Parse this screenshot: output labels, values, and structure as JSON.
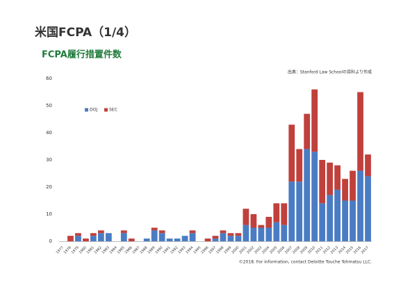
{
  "chart_data": {
    "type": "stacked_bar",
    "title": "米国FCPA（1/4）",
    "subtitle": "FCPA履行措置件数",
    "source": "出典：Stanford Law Schoolの資料より作成",
    "footer": "©2018. For information, contact Deloitte Touche Tohmatsu LLC.",
    "categories": [
      "1977",
      "1978",
      "1979",
      "1980",
      "1981",
      "1982",
      "1983",
      "1984",
      "1985",
      "1986",
      "1987",
      "1988",
      "1989",
      "1990",
      "1991",
      "1992",
      "1993",
      "1994",
      "1995",
      "1996",
      "1997",
      "1998",
      "1999",
      "2000",
      "2001",
      "2002",
      "2003",
      "2004",
      "2005",
      "2006",
      "2007",
      "2008",
      "2009",
      "2010",
      "2011",
      "2012",
      "2013",
      "2014",
      "2015",
      "2016",
      "2017"
    ],
    "series": [
      {
        "name": "DOJ",
        "color": "#4a7cc4",
        "values": [
          0,
          0,
          2,
          0,
          2,
          3,
          3,
          0,
          3,
          0,
          0,
          1,
          4,
          3,
          1,
          1,
          2,
          3,
          0,
          0,
          1,
          3,
          2,
          2,
          6,
          5,
          5,
          5,
          7,
          6,
          22,
          22,
          34,
          33,
          14,
          17,
          19,
          15,
          15,
          26,
          24
        ]
      },
      {
        "name": "SEC",
        "color": "#c0403c",
        "values": [
          0,
          2,
          1,
          1,
          1,
          1,
          0,
          0,
          1,
          1,
          0,
          0,
          1,
          1,
          0,
          0,
          0,
          1,
          0,
          1,
          1,
          1,
          1,
          1,
          6,
          5,
          1,
          4,
          7,
          8,
          21,
          12,
          13,
          23,
          16,
          12,
          9,
          8,
          11,
          29,
          8
        ]
      }
    ],
    "ylim": [
      0,
      60
    ],
    "yticks": [
      0,
      10,
      20,
      30,
      40,
      50,
      60
    ],
    "grid": false,
    "legend": "upper left"
  }
}
